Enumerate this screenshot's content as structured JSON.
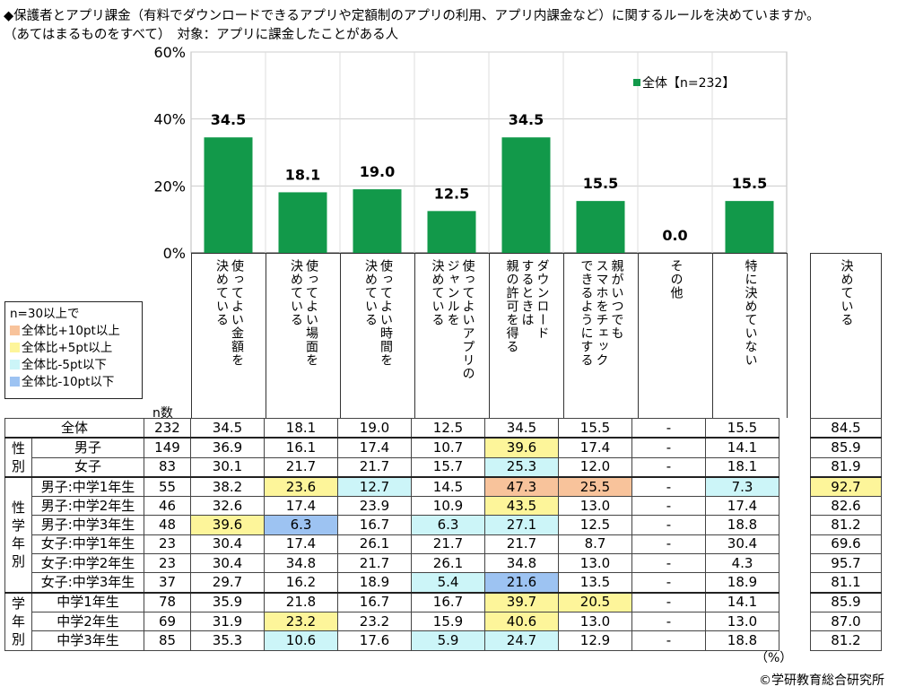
{
  "title": {
    "line1": "◆保護者とアプリ課金（有料でダウンロードできるアプリや定額制のアプリの利用、アプリ内課金など）に関するルールを決めていますか。",
    "line2": "（あてはまるものをすべて）　対象：アプリに課金したことがある人"
  },
  "chart_data": {
    "type": "bar",
    "categories": [
      "使ってよい金額を決めている",
      "使ってよい場面を決めている",
      "使ってよい時間を決めている",
      "使ってよいアプリのジャンルを決めている",
      "ダウンロードするときは親の許可を得る",
      "親がいつでもスマホをチェックできるようにする",
      "その他",
      "特に決めていない"
    ],
    "series": [
      {
        "name": "全体【n=232】",
        "values": [
          34.5,
          18.1,
          19.0,
          12.5,
          34.5,
          15.5,
          0.0,
          15.5
        ],
        "color": "#12994a"
      }
    ],
    "ylim": [
      0,
      60
    ],
    "yticks": [
      "0%",
      "20%",
      "40%",
      "60%"
    ],
    "grid": true,
    "legend": "top-right"
  },
  "headers": [
    "使ってよい金額を\n決めている",
    "使ってよい場面を\n決めている",
    "使ってよい時間を\n決めている",
    "使ってよいアプリの\nジャンルを\n決めている",
    "ダウンロード\nするときは\n親の許可を得る",
    "親がいつでも\nスマホをチェック\nできるようにする",
    "その他",
    "特に決めていない"
  ],
  "total_header": "決めている",
  "n_label": "n数",
  "legend": {
    "title": "n=30以上で",
    "items": [
      {
        "label": "全体比+10pt以上",
        "color": "#f8c39b"
      },
      {
        "label": "全体比+5pt以上",
        "color": "#fdf59a"
      },
      {
        "label": "全体比-5pt以下",
        "color": "#ccf5f8"
      },
      {
        "label": "全体比-10pt以下",
        "color": "#9dc3f2"
      }
    ]
  },
  "groups": [
    {
      "label": "性\n別",
      "start": 1,
      "span": 2
    },
    {
      "label": "性\n学\n年\n別",
      "start": 3,
      "span": 6
    },
    {
      "label": "学\n年\n別",
      "start": 9,
      "span": 3
    }
  ],
  "rows": [
    {
      "label": "全体",
      "n": "232",
      "values": [
        "34.5",
        "18.1",
        "19.0",
        "12.5",
        "34.5",
        "15.5",
        "-",
        "15.5"
      ],
      "total": "84.5",
      "hl": [
        "",
        "",
        "",
        "",
        "",
        "",
        "",
        "",
        ""
      ]
    },
    {
      "label": "男子",
      "n": "149",
      "values": [
        "36.9",
        "16.1",
        "17.4",
        "10.7",
        "39.6",
        "17.4",
        "-",
        "14.1"
      ],
      "total": "85.9",
      "hl": [
        "",
        "",
        "",
        "",
        "y",
        "",
        "",
        "",
        ""
      ]
    },
    {
      "label": "女子",
      "n": "83",
      "values": [
        "30.1",
        "21.7",
        "21.7",
        "15.7",
        "25.3",
        "12.0",
        "-",
        "18.1"
      ],
      "total": "81.9",
      "hl": [
        "",
        "",
        "",
        "",
        "c",
        "",
        "",
        "",
        ""
      ]
    },
    {
      "label": "男子:中学1年生",
      "n": "55",
      "values": [
        "38.2",
        "23.6",
        "12.7",
        "14.5",
        "47.3",
        "25.5",
        "-",
        "7.3"
      ],
      "total": "92.7",
      "hl": [
        "",
        "y",
        "c",
        "",
        "o",
        "o",
        "",
        "c",
        "y"
      ]
    },
    {
      "label": "男子:中学2年生",
      "n": "46",
      "values": [
        "32.6",
        "17.4",
        "23.9",
        "10.9",
        "43.5",
        "13.0",
        "-",
        "17.4"
      ],
      "total": "82.6",
      "hl": [
        "",
        "",
        "",
        "",
        "y",
        "",
        "",
        "",
        ""
      ]
    },
    {
      "label": "男子:中学3年生",
      "n": "48",
      "values": [
        "39.6",
        "6.3",
        "16.7",
        "6.3",
        "27.1",
        "12.5",
        "-",
        "18.8"
      ],
      "total": "81.2",
      "hl": [
        "y",
        "b",
        "",
        "c",
        "c",
        "",
        "",
        "",
        ""
      ]
    },
    {
      "label": "女子:中学1年生",
      "n": "23",
      "values": [
        "30.4",
        "17.4",
        "26.1",
        "21.7",
        "21.7",
        "8.7",
        "-",
        "30.4"
      ],
      "total": "69.6",
      "hl": [
        "",
        "",
        "",
        "",
        "",
        "",
        "",
        "",
        ""
      ]
    },
    {
      "label": "女子:中学2年生",
      "n": "23",
      "values": [
        "30.4",
        "34.8",
        "21.7",
        "26.1",
        "34.8",
        "13.0",
        "-",
        "4.3"
      ],
      "total": "95.7",
      "hl": [
        "",
        "",
        "",
        "",
        "",
        "",
        "",
        "",
        ""
      ]
    },
    {
      "label": "女子:中学3年生",
      "n": "37",
      "values": [
        "29.7",
        "16.2",
        "18.9",
        "5.4",
        "21.6",
        "13.5",
        "-",
        "18.9"
      ],
      "total": "81.1",
      "hl": [
        "",
        "",
        "",
        "c",
        "b",
        "",
        "",
        "",
        ""
      ]
    },
    {
      "label": "中学1年生",
      "n": "78",
      "values": [
        "35.9",
        "21.8",
        "16.7",
        "16.7",
        "39.7",
        "20.5",
        "-",
        "14.1"
      ],
      "total": "85.9",
      "hl": [
        "",
        "",
        "",
        "",
        "y",
        "y",
        "",
        "",
        ""
      ]
    },
    {
      "label": "中学2年生",
      "n": "69",
      "values": [
        "31.9",
        "23.2",
        "23.2",
        "15.9",
        "40.6",
        "13.0",
        "-",
        "13.0"
      ],
      "total": "87.0",
      "hl": [
        "",
        "y",
        "",
        "",
        "y",
        "",
        "",
        "",
        ""
      ]
    },
    {
      "label": "中学3年生",
      "n": "85",
      "values": [
        "35.3",
        "10.6",
        "17.6",
        "5.9",
        "24.7",
        "12.9",
        "-",
        "18.8"
      ],
      "total": "81.2",
      "hl": [
        "",
        "c",
        "",
        "c",
        "c",
        "",
        "",
        "",
        ""
      ]
    }
  ],
  "unit": "（%）",
  "copyright": "©学研教育総合研究所"
}
